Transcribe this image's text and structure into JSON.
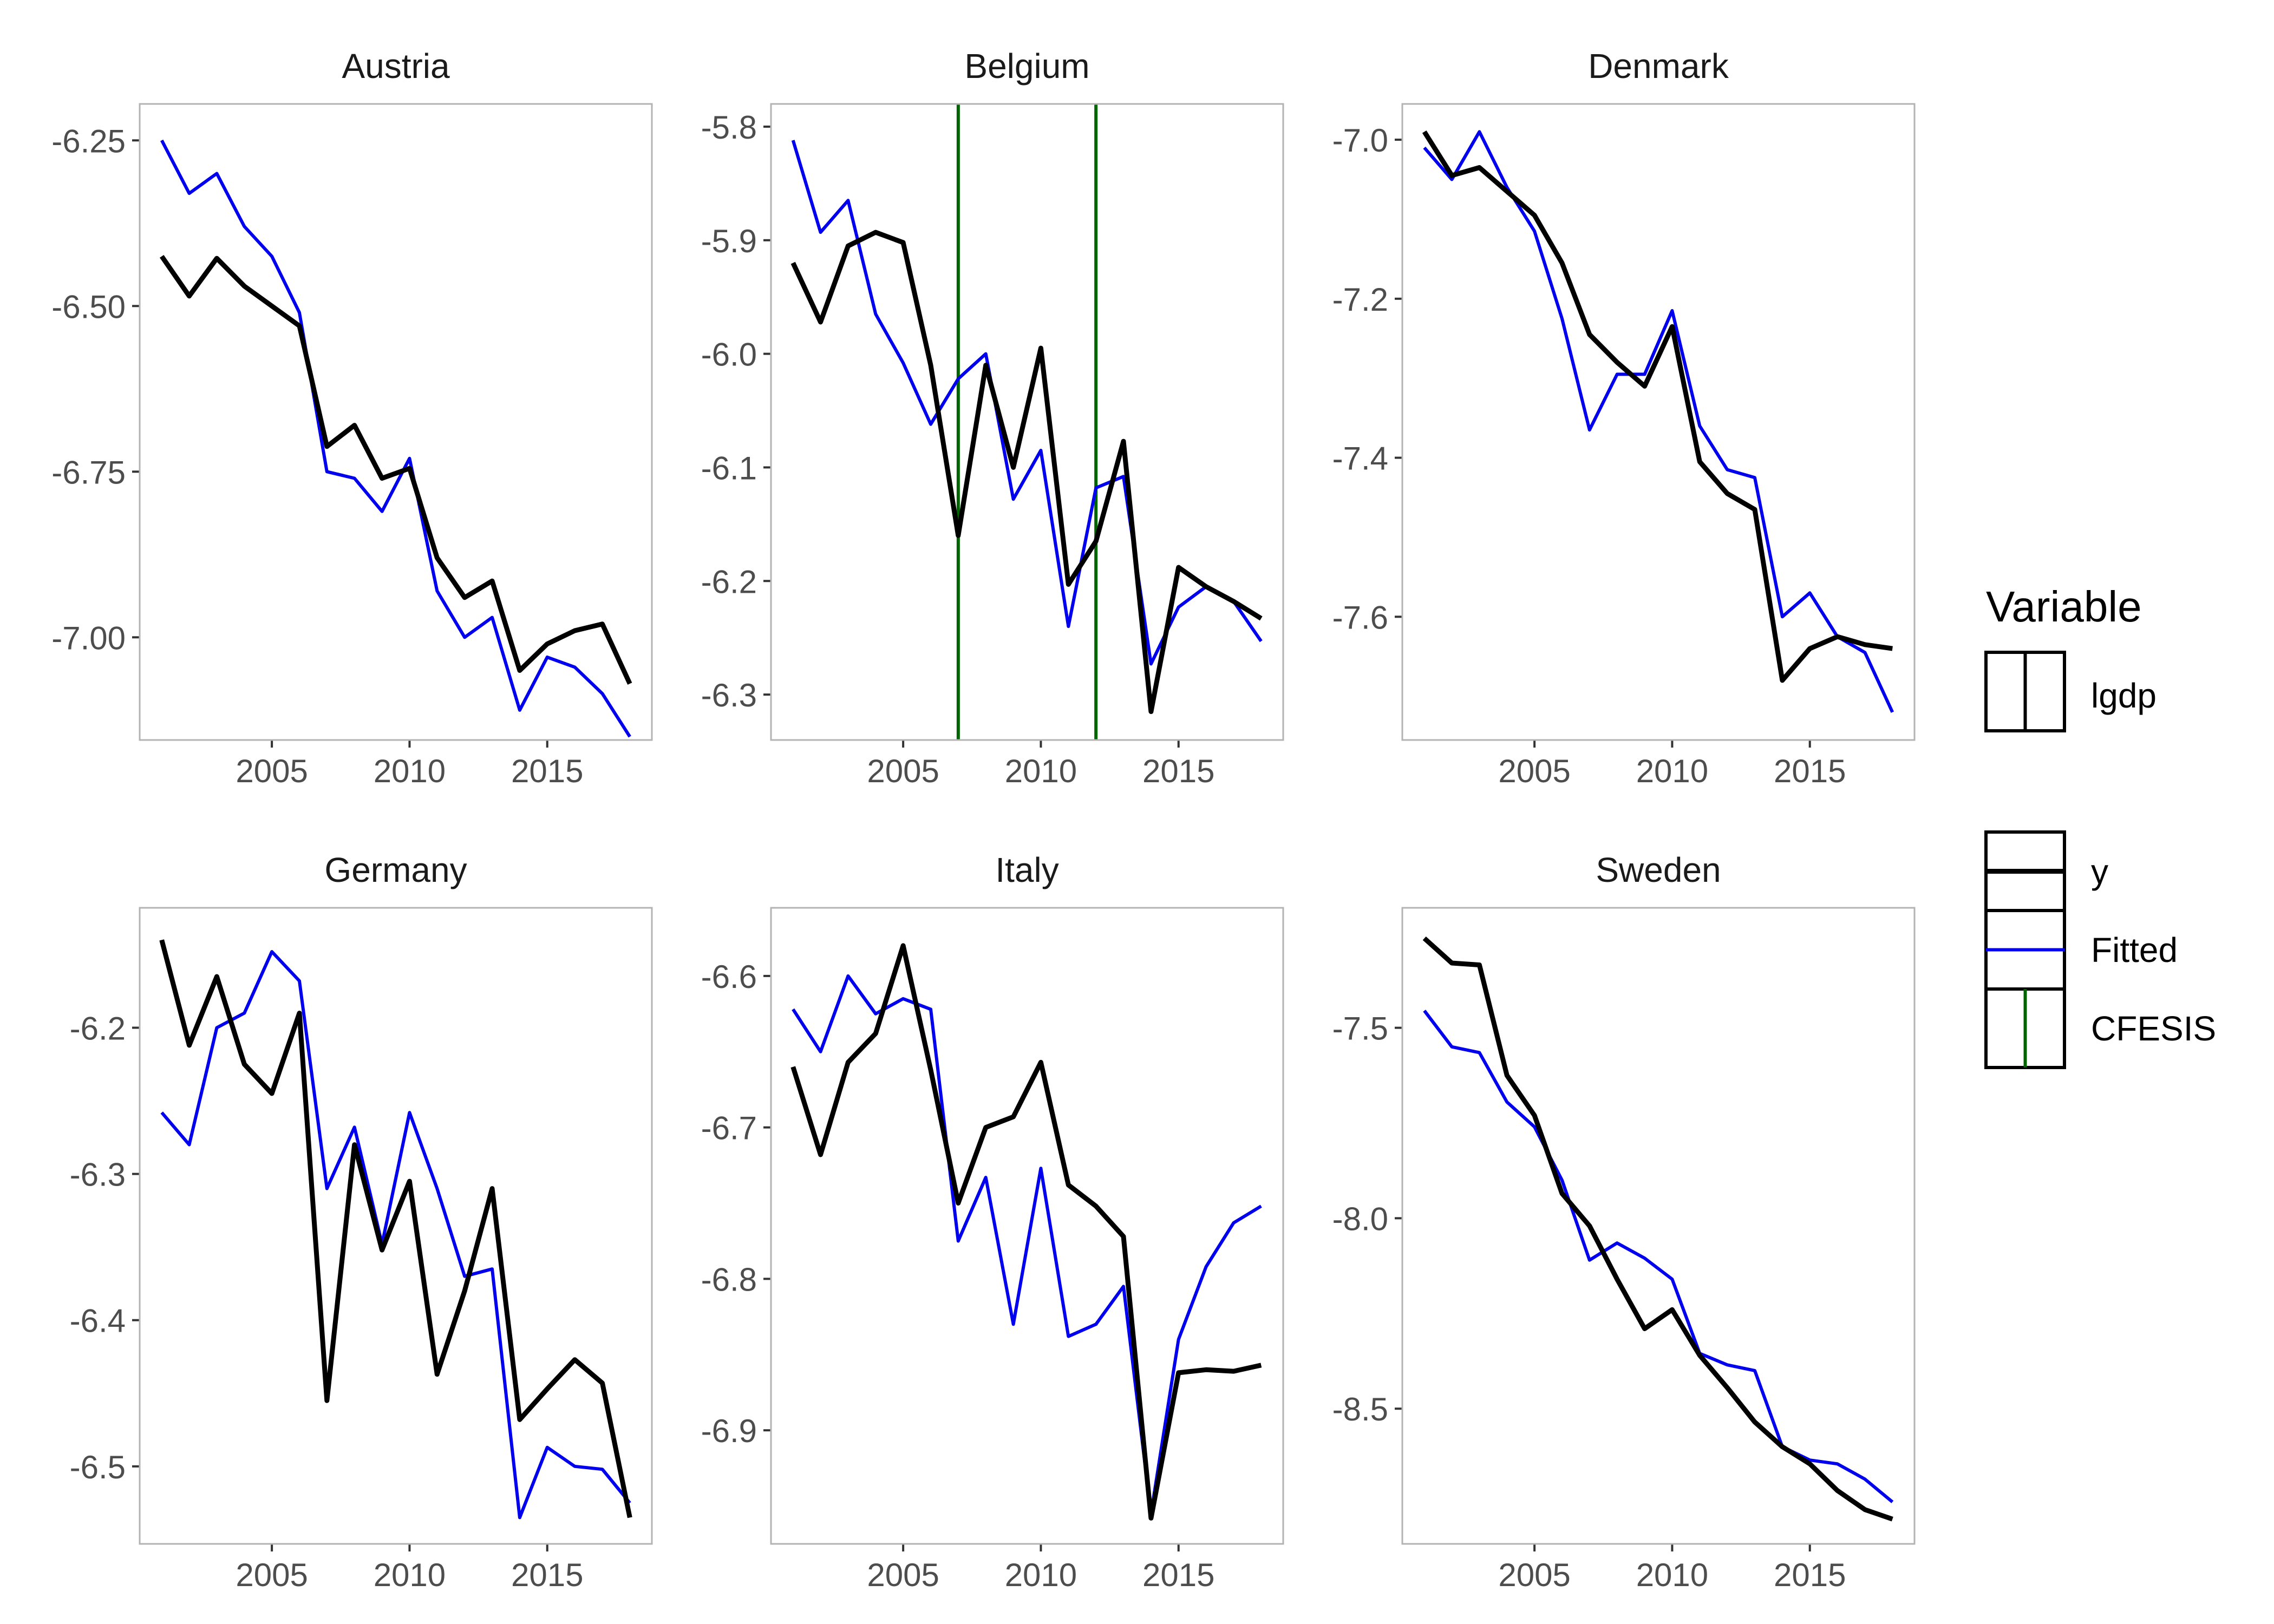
{
  "chart_data": [
    {
      "type": "line",
      "title": "Austria",
      "xticks": [
        2005,
        2010,
        2015
      ],
      "yticks": [
        -6.25,
        -6.5,
        -6.75,
        -7.0
      ],
      "ytick_labels": [
        "-6.25",
        "-6.50",
        "-6.75",
        "-7.00"
      ],
      "xlim": [
        2000.2,
        2018.8
      ],
      "ylim": [
        -7.155,
        -6.195
      ],
      "x": [
        2001,
        2002,
        2003,
        2004,
        2005,
        2006,
        2007,
        2008,
        2009,
        2010,
        2011,
        2012,
        2013,
        2014,
        2015,
        2016,
        2017,
        2018
      ],
      "series": [
        {
          "name": "y",
          "values": [
            -6.425,
            -6.485,
            -6.428,
            -6.47,
            -6.5,
            -6.53,
            -6.712,
            -6.68,
            -6.76,
            -6.745,
            -6.88,
            -6.94,
            -6.915,
            -7.05,
            -7.01,
            -6.99,
            -6.98,
            -7.07
          ]
        },
        {
          "name": "Fitted",
          "values": [
            -6.25,
            -6.33,
            -6.3,
            -6.38,
            -6.425,
            -6.51,
            -6.75,
            -6.76,
            -6.81,
            -6.73,
            -6.93,
            -7.0,
            -6.97,
            -7.11,
            -7.03,
            -7.045,
            -7.085,
            -7.15
          ]
        }
      ],
      "vlines": []
    },
    {
      "type": "line",
      "title": "Belgium",
      "xticks": [
        2005,
        2010,
        2015
      ],
      "yticks": [
        -5.8,
        -5.9,
        -6.0,
        -6.1,
        -6.2,
        -6.3
      ],
      "ytick_labels": [
        "-5.8",
        "-5.9",
        "-6.0",
        "-6.1",
        "-6.2",
        "-6.3"
      ],
      "xlim": [
        2000.2,
        2018.8
      ],
      "ylim": [
        -6.34,
        -5.78
      ],
      "x": [
        2001,
        2002,
        2003,
        2004,
        2005,
        2006,
        2007,
        2008,
        2009,
        2010,
        2011,
        2012,
        2013,
        2014,
        2015,
        2016,
        2017,
        2018
      ],
      "series": [
        {
          "name": "y",
          "values": [
            -5.92,
            -5.972,
            -5.905,
            -5.893,
            -5.902,
            -6.01,
            -6.16,
            -6.01,
            -6.1,
            -5.995,
            -6.203,
            -6.165,
            -6.077,
            -6.315,
            -6.188,
            -6.205,
            -6.218,
            -6.233
          ]
        },
        {
          "name": "Fitted",
          "values": [
            -5.812,
            -5.893,
            -5.865,
            -5.965,
            -6.008,
            -6.062,
            -6.022,
            -6.0,
            -6.128,
            -6.085,
            -6.24,
            -6.118,
            -6.108,
            -6.273,
            -6.223,
            -6.205,
            -6.218,
            -6.253
          ]
        }
      ],
      "vlines": [
        {
          "name": "CFESIS",
          "x": 2007
        },
        {
          "name": "CFESIS",
          "x": 2012
        }
      ]
    },
    {
      "type": "line",
      "title": "Denmark",
      "xticks": [
        2005,
        2010,
        2015
      ],
      "yticks": [
        -7.0,
        -7.2,
        -7.4,
        -7.6
      ],
      "ytick_labels": [
        "-7.0",
        "-7.2",
        "-7.4",
        "-7.6"
      ],
      "xlim": [
        2000.2,
        2018.8
      ],
      "ylim": [
        -7.755,
        -6.955
      ],
      "x": [
        2001,
        2002,
        2003,
        2004,
        2005,
        2006,
        2007,
        2008,
        2009,
        2010,
        2011,
        2012,
        2013,
        2014,
        2015,
        2016,
        2017,
        2018
      ],
      "series": [
        {
          "name": "y",
          "values": [
            -6.99,
            -7.045,
            -7.035,
            -7.065,
            -7.095,
            -7.155,
            -7.245,
            -7.28,
            -7.31,
            -7.235,
            -7.405,
            -7.445,
            -7.465,
            -7.68,
            -7.64,
            -7.625,
            -7.635,
            -7.64
          ]
        },
        {
          "name": "Fitted",
          "values": [
            -7.01,
            -7.05,
            -6.99,
            -7.06,
            -7.115,
            -7.225,
            -7.365,
            -7.295,
            -7.295,
            -7.215,
            -7.36,
            -7.415,
            -7.425,
            -7.6,
            -7.57,
            -7.625,
            -7.645,
            -7.72
          ]
        }
      ],
      "vlines": []
    },
    {
      "type": "line",
      "title": "Germany",
      "xticks": [
        2005,
        2010,
        2015
      ],
      "yticks": [
        -6.2,
        -6.3,
        -6.4,
        -6.5
      ],
      "ytick_labels": [
        "-6.2",
        "-6.3",
        "-6.4",
        "-6.5"
      ],
      "xlim": [
        2000.2,
        2018.8
      ],
      "ylim": [
        -6.553,
        -6.118
      ],
      "x": [
        2001,
        2002,
        2003,
        2004,
        2005,
        2006,
        2007,
        2008,
        2009,
        2010,
        2011,
        2012,
        2013,
        2014,
        2015,
        2016,
        2017,
        2018
      ],
      "series": [
        {
          "name": "y",
          "values": [
            -6.14,
            -6.212,
            -6.165,
            -6.225,
            -6.245,
            -6.19,
            -6.455,
            -6.28,
            -6.352,
            -6.305,
            -6.437,
            -6.38,
            -6.31,
            -6.468,
            -6.447,
            -6.427,
            -6.443,
            -6.535
          ]
        },
        {
          "name": "Fitted",
          "values": [
            -6.258,
            -6.28,
            -6.2,
            -6.19,
            -6.148,
            -6.168,
            -6.31,
            -6.268,
            -6.348,
            -6.258,
            -6.31,
            -6.37,
            -6.365,
            -6.535,
            -6.487,
            -6.5,
            -6.502,
            -6.525
          ]
        }
      ],
      "vlines": []
    },
    {
      "type": "line",
      "title": "Italy",
      "xticks": [
        2005,
        2010,
        2015
      ],
      "yticks": [
        -6.6,
        -6.7,
        -6.8,
        -6.9
      ],
      "ytick_labels": [
        "-6.6",
        "-6.7",
        "-6.8",
        "-6.9"
      ],
      "xlim": [
        2000.2,
        2018.8
      ],
      "ylim": [
        -6.975,
        -6.555
      ],
      "x": [
        2001,
        2002,
        2003,
        2004,
        2005,
        2006,
        2007,
        2008,
        2009,
        2010,
        2011,
        2012,
        2013,
        2014,
        2015,
        2016,
        2017,
        2018
      ],
      "series": [
        {
          "name": "y",
          "values": [
            -6.66,
            -6.718,
            -6.657,
            -6.638,
            -6.58,
            -6.662,
            -6.75,
            -6.7,
            -6.693,
            -6.657,
            -6.738,
            -6.752,
            -6.772,
            -6.958,
            -6.862,
            -6.86,
            -6.861,
            -6.857
          ]
        },
        {
          "name": "Fitted",
          "values": [
            -6.622,
            -6.65,
            -6.6,
            -6.625,
            -6.615,
            -6.622,
            -6.775,
            -6.733,
            -6.83,
            -6.727,
            -6.838,
            -6.83,
            -6.805,
            -6.955,
            -6.84,
            -6.792,
            -6.763,
            -6.752
          ]
        }
      ],
      "vlines": []
    },
    {
      "type": "line",
      "title": "Sweden",
      "xticks": [
        2005,
        2010,
        2015
      ],
      "yticks": [
        -7.5,
        -8.0,
        -8.5
      ],
      "ytick_labels": [
        "-7.5",
        "-8.0",
        "-8.5"
      ],
      "xlim": [
        2000.2,
        2018.8
      ],
      "ylim": [
        -8.855,
        -7.185
      ],
      "x": [
        2001,
        2002,
        2003,
        2004,
        2005,
        2006,
        2007,
        2008,
        2009,
        2010,
        2011,
        2012,
        2013,
        2014,
        2015,
        2016,
        2017,
        2018
      ],
      "series": [
        {
          "name": "y",
          "values": [
            -7.265,
            -7.33,
            -7.335,
            -7.625,
            -7.73,
            -7.935,
            -8.02,
            -8.16,
            -8.29,
            -8.24,
            -8.36,
            -8.445,
            -8.535,
            -8.6,
            -8.645,
            -8.715,
            -8.765,
            -8.79
          ]
        },
        {
          "name": "Fitted",
          "values": [
            -7.455,
            -7.55,
            -7.565,
            -7.695,
            -7.76,
            -7.9,
            -8.11,
            -8.065,
            -8.105,
            -8.16,
            -8.355,
            -8.385,
            -8.4,
            -8.6,
            -8.635,
            -8.645,
            -8.685,
            -8.745
          ]
        }
      ],
      "vlines": []
    }
  ],
  "colors": {
    "y": "#000000",
    "fitted": "#0000ee",
    "cfesis": "#006400",
    "panel_border": "#b3b3b3",
    "tick_label": "#4d4d4d",
    "strip_text": "#1a1a1a"
  },
  "legend": {
    "title": "Variable",
    "placement": "right",
    "groups": [
      [
        {
          "key": "lgdp",
          "label": "lgdp",
          "kind": "box-line"
        }
      ],
      [
        {
          "key": "y",
          "label": "y",
          "kind": "hline"
        },
        {
          "key": "fitted",
          "label": "Fitted",
          "kind": "hline"
        },
        {
          "key": "cfesis",
          "label": "CFESIS",
          "kind": "vline"
        }
      ]
    ]
  }
}
